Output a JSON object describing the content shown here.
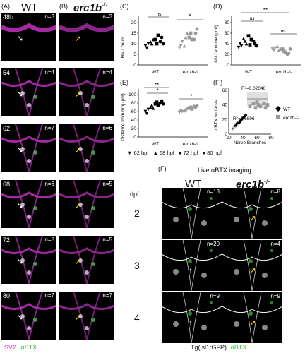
{
  "panels": {
    "A": {
      "label": "(A)",
      "title": "WT"
    },
    "B": {
      "label": "(B)",
      "title_main": "erc1b",
      "title_sup": "-/-"
    },
    "rows": [
      {
        "hpf": "48h",
        "wt_n": "n=3",
        "mut_n": "n=3"
      },
      {
        "hpf": "54",
        "wt_n": "n=4",
        "mut_n": "n=4"
      },
      {
        "hpf": "62",
        "wt_n": "n=7",
        "mut_n": "n=6"
      },
      {
        "hpf": "68",
        "wt_n": "n=6",
        "mut_n": "n=5"
      },
      {
        "hpf": "72",
        "wt_n": "n=8",
        "mut_n": "n=5"
      },
      {
        "hpf": "80",
        "wt_n": "n=7",
        "mut_n": "n=7"
      }
    ],
    "legend_ab": {
      "sv2": "SV2",
      "abtx": "αBTX"
    },
    "C": {
      "label": "(C)",
      "ylabel": "NMJ count",
      "sig_left": "ns",
      "sig_right": "*",
      "x_wt": "WT",
      "x_mut": "erc1b-/-",
      "yticks": [
        "0",
        "5",
        "10",
        "15",
        "20"
      ]
    },
    "D": {
      "label": "(D)",
      "ylabel": "NMJ volume (µm³)",
      "sig_top": "**",
      "sig_left": "ns",
      "sig_right": "ns",
      "x_wt": "WT",
      "x_mut": "erc1b-/-",
      "yticks": [
        "0",
        "20",
        "40",
        "60",
        "80"
      ]
    },
    "E": {
      "label": "(E)",
      "ylabel": "Distance from mhj (µm)",
      "sig_top": "**",
      "sig_left": "*",
      "sig_right": "*",
      "x_wt": "WT",
      "x_mut": "erc1b-/-",
      "yticks": [
        "0",
        "20",
        "40",
        "60",
        "80",
        "100"
      ]
    },
    "Fp": {
      "label": "(F')",
      "ylabel": "αBTX surfaces",
      "xlabel": "Nerve Branches",
      "r2_top": "R²=0.02046",
      "r2_bottom": "R²=0.6896",
      "legend_wt": "WT",
      "legend_mut": "erc1b-/-",
      "xticks": [
        "20",
        "40",
        "60",
        "80"
      ],
      "yticks": [
        "0",
        "20",
        "40",
        "60"
      ]
    },
    "hpf_legend": [
      "62 hpf",
      "68 hpf",
      "72 hpf",
      "80 hpf"
    ],
    "F": {
      "label": "(F)",
      "title": "Live αBTX imaging",
      "wt": "WT",
      "mut_main": "erc1b",
      "mut_sup": "-/-",
      "dpf_label": "dpf",
      "rows": [
        {
          "dpf": "2",
          "wt_n": "n=13",
          "mut_n": "n=8"
        },
        {
          "dpf": "3",
          "wt_n": "n=20",
          "mut_n": "n=4"
        },
        {
          "dpf": "4",
          "wt_n": "n=9",
          "mut_n": "n=9"
        }
      ],
      "caption_main": "Tg(isl1:GFP)",
      "caption_abtx": "αBTX"
    }
  },
  "chart_data": [
    {
      "type": "scatter",
      "title": "",
      "ylabel": "NMJ count",
      "categories": [
        "WT",
        "erc1b-/-"
      ],
      "ylim": [
        0,
        20
      ],
      "series": [
        {
          "name": "62 hpf",
          "values": [
            9,
            8,
            10,
            8,
            9,
            11
          ]
        },
        {
          "name": "68 hpf",
          "values": [
            11,
            10,
            12,
            9,
            13,
            15
          ]
        },
        {
          "name": "72 hpf",
          "values": [
            12,
            10,
            14,
            13,
            15,
            12
          ]
        },
        {
          "name": "80 hpf",
          "values": [
            11,
            13,
            10,
            12,
            15,
            17
          ]
        }
      ]
    },
    {
      "type": "scatter",
      "ylabel": "NMJ volume (µm³)",
      "categories": [
        "WT",
        "erc1b-/-"
      ],
      "ylim": [
        0,
        80
      ],
      "series": [
        {
          "name": "62 hpf",
          "values": [
            33,
            40,
            36,
            30,
            28,
            32
          ]
        },
        {
          "name": "68 hpf",
          "values": [
            50,
            45,
            40,
            35,
            28,
            30
          ]
        },
        {
          "name": "72 hpf",
          "values": [
            55,
            38,
            48,
            30,
            26,
            24
          ]
        },
        {
          "name": "80 hpf",
          "values": [
            45,
            40,
            36,
            20,
            22,
            30
          ]
        }
      ]
    },
    {
      "type": "scatter",
      "ylabel": "Distance from mhj (µm)",
      "categories": [
        "WT",
        "erc1b-/-"
      ],
      "ylim": [
        0,
        100
      ],
      "series": [
        {
          "name": "62 hpf",
          "values": [
            60,
            55,
            65,
            58,
            62,
            60
          ]
        },
        {
          "name": "68 hpf",
          "values": [
            70,
            75,
            68,
            62,
            65,
            68
          ]
        },
        {
          "name": "72 hpf",
          "values": [
            78,
            82,
            75,
            68,
            70,
            66
          ]
        },
        {
          "name": "80 hpf",
          "values": [
            80,
            85,
            78,
            72,
            70,
            74
          ]
        }
      ]
    },
    {
      "type": "scatter",
      "xlabel": "Nerve Branches",
      "ylabel": "αBTX surfaces",
      "xlim": [
        20,
        80
      ],
      "ylim": [
        0,
        60
      ],
      "series": [
        {
          "name": "WT",
          "x": [
            30,
            32,
            35,
            36,
            38,
            40,
            42,
            44
          ],
          "y": [
            12,
            15,
            16,
            18,
            20,
            22,
            24,
            26
          ]
        },
        {
          "name": "erc1b-/-",
          "x": [
            50,
            55,
            58,
            60,
            62,
            65,
            70,
            72,
            75
          ],
          "y": [
            38,
            42,
            36,
            44,
            40,
            38,
            42,
            36,
            40
          ]
        }
      ]
    }
  ]
}
